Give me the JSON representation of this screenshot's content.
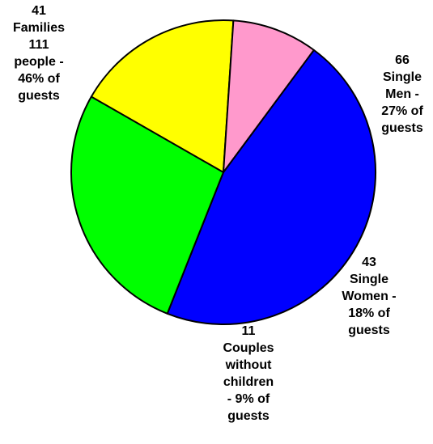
{
  "chart_data": {
    "type": "pie",
    "slices": [
      {
        "category": "Families",
        "value": 111,
        "color": "#0000FF",
        "label_lines": [
          "41",
          "Families",
          "111",
          "people -",
          "46% of",
          "guests"
        ]
      },
      {
        "category": "Single Men",
        "value": 66,
        "color": "#00FF00",
        "label_lines": [
          "66",
          "Single",
          "Men -",
          "27% of",
          "guests"
        ]
      },
      {
        "category": "Single Women",
        "value": 43,
        "color": "#FFFF00",
        "label_lines": [
          "43",
          "Single",
          "Women -",
          "18% of",
          "guests"
        ]
      },
      {
        "category": "Couples without children",
        "value": 22,
        "color": "#FF99CC",
        "label_lines": [
          "11",
          "Couples",
          "without",
          "children",
          "- 9% of",
          "guests"
        ]
      }
    ],
    "legend": "none",
    "outline_color": "#000000"
  }
}
